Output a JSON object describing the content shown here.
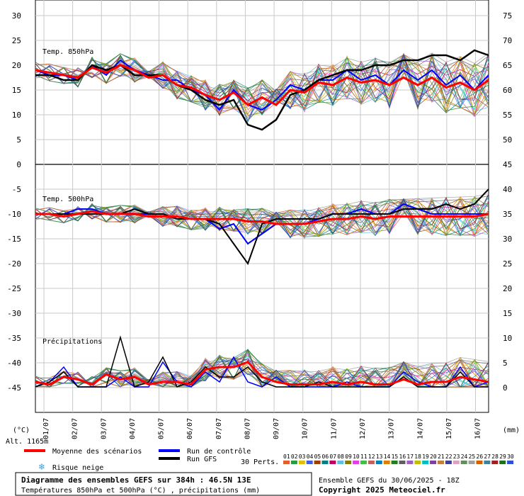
{
  "chart_data": {
    "type": "line",
    "left_axis_label": "(°C)",
    "right_axis_label": "(mm)",
    "altitude_label": "Alt. 1165m",
    "left_ticks": [
      "30",
      "25",
      "20",
      "15",
      "10",
      "5",
      "0",
      "-5",
      "-10",
      "-15",
      "-20",
      "-25",
      "-30",
      "-35",
      "-40",
      "-45"
    ],
    "right_ticks": [
      "75",
      "70",
      "65",
      "60",
      "55",
      "50",
      "45",
      "40",
      "35",
      "30",
      "25",
      "20",
      "15",
      "10",
      "5",
      "0"
    ],
    "x_dates": [
      "01/07",
      "02/07",
      "03/07",
      "04/07",
      "05/07",
      "06/07",
      "07/07",
      "08/07",
      "09/07",
      "10/07",
      "11/07",
      "12/07",
      "13/07",
      "14/07",
      "15/07",
      "16/07"
    ],
    "panels": {
      "t850_label": "Temp. 850hPa",
      "t500_label": "Temp. 500hPa",
      "precip_label": "Précipitations"
    },
    "series": [
      {
        "name": "Moyenne des scénarios",
        "color": "#ff0000"
      },
      {
        "name": "Run de contrôle",
        "color": "#0000ff"
      },
      {
        "name": "Run GFS",
        "color": "#000000"
      }
    ],
    "t850_mean": [
      19,
      18.5,
      18,
      17.5,
      19.5,
      18.5,
      20,
      19,
      17.5,
      18,
      16,
      15.5,
      14,
      13,
      14.5,
      12,
      13.5,
      12,
      15,
      14.5,
      16.5,
      16,
      17.5,
      16.5,
      17,
      16,
      17.5,
      16,
      17.5,
      15.5,
      16.5,
      15,
      17
    ],
    "t850_control": [
      19,
      18,
      18,
      17,
      20,
      18,
      21,
      19,
      18,
      17,
      17,
      15,
      14,
      11,
      15,
      12,
      11,
      13,
      16,
      15,
      17,
      17,
      19,
      17,
      18,
      16,
      19,
      17,
      19,
      16,
      18,
      15,
      18
    ],
    "t850_gfs": [
      18,
      18,
      17,
      17,
      20,
      19,
      20,
      18,
      18,
      18,
      16,
      15,
      13,
      12,
      13,
      8,
      7,
      9,
      14,
      15,
      17,
      18,
      19,
      19,
      20,
      20,
      21,
      21,
      22,
      22,
      21,
      23,
      22
    ],
    "t500_mean": [
      -10,
      -10,
      -10.5,
      -10,
      -9.5,
      -10,
      -10,
      -10,
      -10.5,
      -10.5,
      -10.5,
      -11,
      -11,
      -11,
      -11,
      -11.5,
      -11.5,
      -12,
      -12,
      -12,
      -11.5,
      -11,
      -11,
      -10.5,
      -11,
      -10.5,
      -10.5,
      -10.5,
      -10.5,
      -10.5,
      -10.5,
      -10.5,
      -10
    ],
    "t500_control": [
      -10,
      -10,
      -10,
      -9,
      -9,
      -10,
      -10,
      -10,
      -10,
      -10,
      -11,
      -11,
      -11,
      -13,
      -12,
      -16,
      -14,
      -12,
      -12,
      -12,
      -11,
      -10,
      -10,
      -9,
      -10,
      -10,
      -8,
      -9,
      -10,
      -10,
      -10,
      -10,
      -10
    ],
    "t500_gfs": [
      -10,
      -10,
      -10,
      -10,
      -10,
      -10,
      -10,
      -9,
      -10,
      -10,
      -11,
      -11,
      -11,
      -12,
      -16,
      -20,
      -12,
      -11,
      -11,
      -11,
      -11,
      -10,
      -10,
      -10,
      -10,
      -10,
      -9,
      -9,
      -9,
      -8,
      -9,
      -8,
      -5
    ],
    "precip_mean": [
      1,
      0.5,
      2,
      1.5,
      0.5,
      2.5,
      1.5,
      2,
      0.5,
      1,
      1,
      0.5,
      3.5,
      4,
      4,
      5,
      2,
      1,
      0.5,
      0.5,
      0.5,
      1,
      0.5,
      1,
      0.5,
      0.5,
      1.5,
      0.5,
      1,
      1,
      2,
      1.5,
      1
    ],
    "precip_control": [
      0,
      1,
      4,
      0,
      0,
      0,
      2,
      0,
      0,
      5,
      1,
      0,
      3,
      1,
      6,
      1,
      0,
      2,
      0,
      0,
      0,
      0,
      1,
      0,
      0,
      0,
      3,
      1,
      0,
      0,
      4,
      0,
      1
    ],
    "precip_gfs": [
      0,
      1,
      3,
      0,
      0,
      0,
      10,
      0,
      1,
      6,
      0,
      1,
      4,
      2,
      2,
      4,
      1,
      0,
      0,
      0,
      1,
      0,
      0,
      0,
      0,
      0,
      2,
      0,
      0,
      0,
      3,
      0,
      0
    ],
    "legend": {
      "mean_label": "Moyenne des scénarios",
      "snow_label": "Risque neige",
      "control_label": "Run de contrôle",
      "gfs_label": "Run GFS",
      "perts_label": "30 Perts.",
      "pert_numbers": [
        "01",
        "02",
        "03",
        "04",
        "05",
        "06",
        "07",
        "08",
        "09",
        "10",
        "11",
        "12",
        "13",
        "14",
        "15",
        "16",
        "17",
        "18",
        "19",
        "20",
        "21",
        "22",
        "23",
        "24",
        "25",
        "26",
        "27",
        "28",
        "29",
        "30"
      ],
      "pert_colors": [
        "#e06030",
        "#20a040",
        "#e0c000",
        "#4060e0",
        "#a04000",
        "#008080",
        "#c00060",
        "#60c0e0",
        "#808000",
        "#e040e0",
        "#40c040",
        "#c06060",
        "#0080c0",
        "#e08000",
        "#208020",
        "#606060",
        "#a060c0",
        "#c0c000",
        "#00c0c0",
        "#8040a0",
        "#c08040",
        "#4040a0",
        "#e0a0c0",
        "#609060",
        "#a0a0a0",
        "#d06000",
        "#4080a0",
        "#a02020",
        "#207020",
        "#3050d0"
      ]
    },
    "footer": {
      "title": "Diagramme des ensembles GEFS sur 384h : 46.5N 13E",
      "subtitle": "Températures 850hPa et 500hPa (°C) , précipitations (mm)",
      "run_info": "Ensemble GEFS du 30/06/2025 - 18Z",
      "copyright": "Copyright 2025 Meteociel.fr"
    }
  }
}
